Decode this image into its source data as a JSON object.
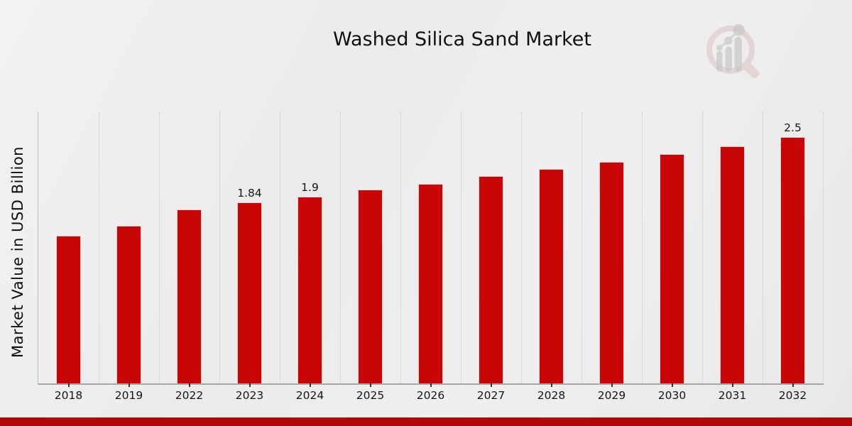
{
  "page": {
    "title": "Washed Silica Sand Market"
  },
  "chart_data": {
    "type": "bar",
    "title": "Washed Silica Sand Market",
    "xlabel": "",
    "ylabel": "Market Value in USD Billion",
    "categories": [
      "2018",
      "2019",
      "2022",
      "2023",
      "2024",
      "2025",
      "2026",
      "2027",
      "2028",
      "2029",
      "2030",
      "2031",
      "2032"
    ],
    "values": [
      1.5,
      1.6,
      1.77,
      1.84,
      1.9,
      1.97,
      2.03,
      2.11,
      2.18,
      2.25,
      2.33,
      2.41,
      2.5
    ],
    "value_labels": {
      "2023": "1.84",
      "2024": "1.9",
      "2032": "2.5"
    },
    "ylim": [
      0,
      2.76
    ],
    "grid": "vertical-dotted",
    "legend": "none",
    "bar_color": "#c90606",
    "axis_color": "#a6a6a6",
    "gridline_color": "#c7c7c7",
    "label_color": "#161616"
  },
  "branding": {
    "logo_icon": "magnifier-bar-chart-logo",
    "logo_ring_color": "#d9bcbc",
    "logo_bars_color": "#c2c3c7",
    "accent_band_color": "#b30808"
  }
}
